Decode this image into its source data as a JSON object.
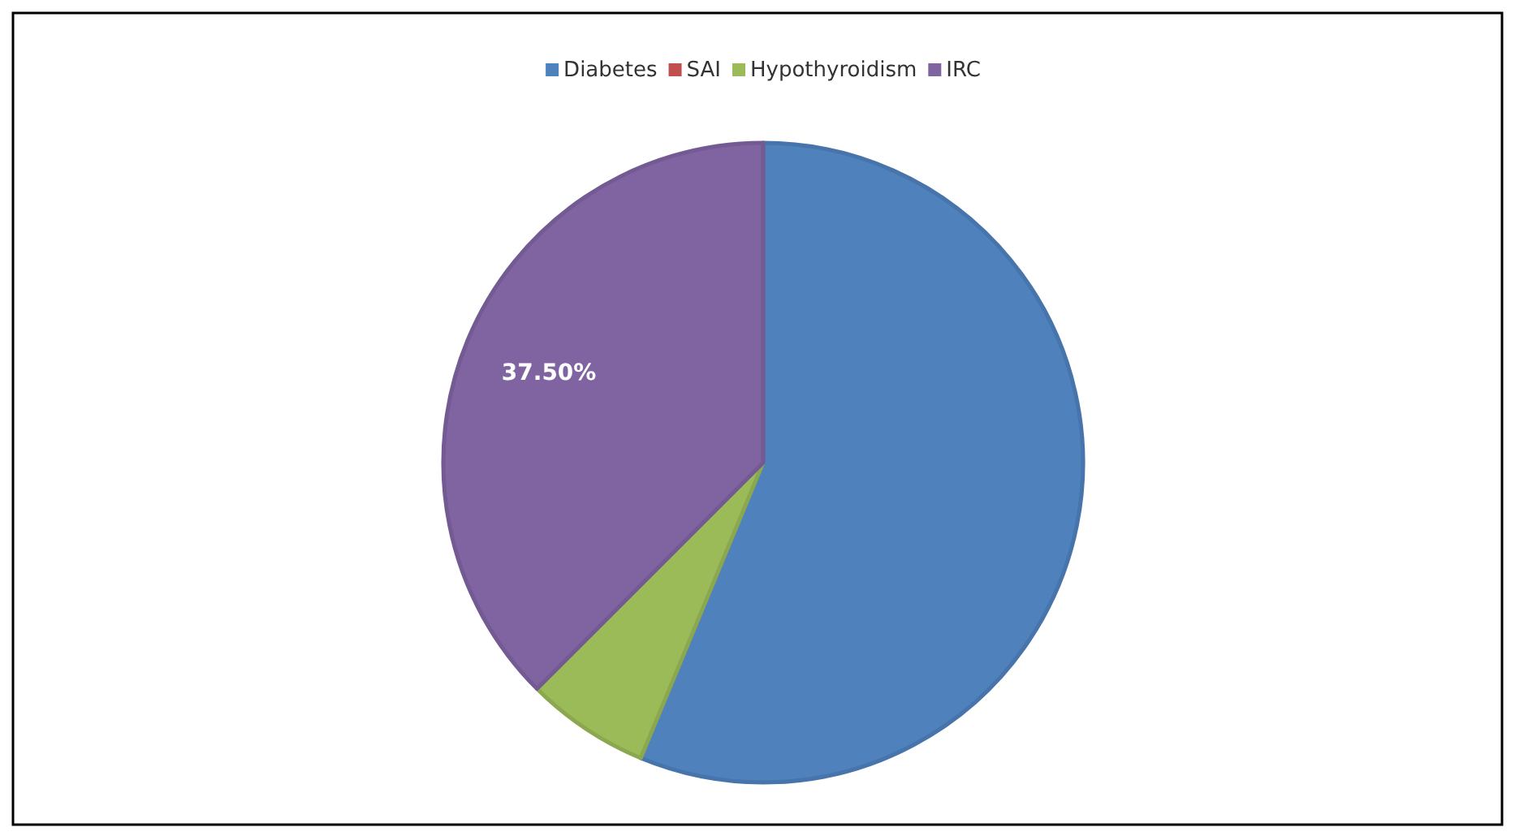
{
  "chart_data": {
    "type": "pie",
    "categories": [
      "Diabetes",
      "SAI",
      "Hypothyroidism",
      "IRC"
    ],
    "values": [
      56.25,
      0,
      6.25,
      37.5
    ],
    "colors": [
      "#4f81bd",
      "#c0504d",
      "#9bbb59",
      "#8064a2"
    ],
    "value_labels": [
      null,
      null,
      null,
      "37.50%"
    ],
    "legend": "top"
  }
}
